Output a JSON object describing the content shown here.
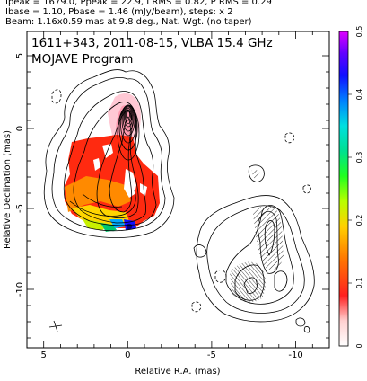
{
  "header": {
    "line1": "Ipeak = 1679.0, Ppeak = 22.9, I RMS = 0.82, P RMS = 0.29",
    "line2": "Ibase = 1.10, Pbase = 1.46 (mJy/beam), steps: x 2",
    "line3": "Beam: 1.16x0.59 mas at 9.8 deg., Nat. Wgt. (no taper)"
  },
  "plot": {
    "title_line1": "1611+343, 2011-08-15, VLBA 15.4 GHz",
    "title_line2": "MOJAVE Program",
    "xlabel": "Relative R.A. (mas)",
    "ylabel": "Relative Declination (mas)",
    "x_ticks": [
      "5",
      "0",
      "-5",
      "-10"
    ],
    "y_ticks": [
      "5",
      "0",
      "-5",
      "-10"
    ],
    "colorbar_ticks": [
      "0.5",
      "0.4",
      "0.3",
      "0.2",
      "0.1",
      "0"
    ],
    "colorbar_range": [
      0,
      0.5
    ],
    "axis_ranges": {
      "ra": [
        5.5,
        -12.5
      ],
      "dec": [
        -13,
        6.5
      ]
    }
  }
}
